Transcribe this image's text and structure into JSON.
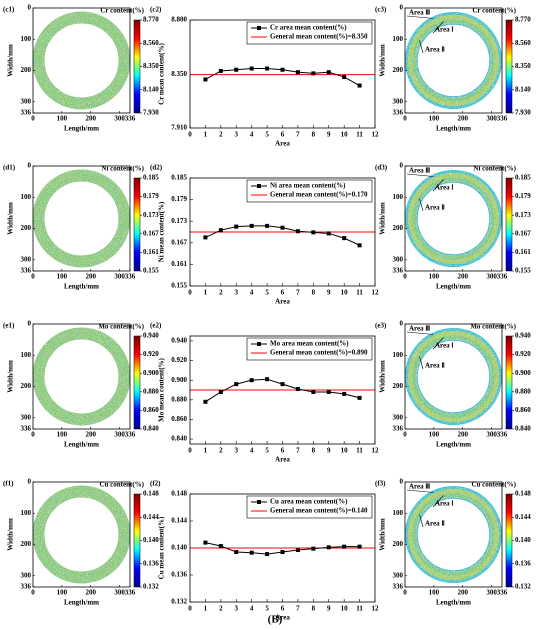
{
  "chart_data": [
    {
      "type": "heatmap",
      "label": "(c1)",
      "colorbar_title": "Cr content(%)",
      "clim": [
        7.93,
        8.77
      ],
      "colorbar_ticks": [
        {
          "value": 8.77,
          "label": "8.770"
        },
        {
          "value": 8.56,
          "label": "8.560"
        },
        {
          "value": 8.35,
          "label": "8.350"
        },
        {
          "value": 8.14,
          "label": "8.140"
        },
        {
          "value": 7.93,
          "label": "7.930"
        }
      ],
      "xlim": [
        0,
        336
      ],
      "ylim": [
        0,
        336
      ],
      "xticks": [
        0,
        100,
        200,
        300,
        336
      ],
      "yticks": [
        0,
        100,
        200,
        300,
        336
      ],
      "xlabel": "Length/mm",
      "ylabel": "Width/mm",
      "colormap": [
        "#00008f",
        "#0000ff",
        "#00ffff",
        "#ffff00",
        "#ff0000",
        "#800000"
      ]
    },
    {
      "type": "line",
      "label": "(c2)",
      "x": [
        1,
        2,
        3,
        4,
        5,
        6,
        7,
        8,
        9,
        10,
        11
      ],
      "series": [
        {
          "name": "Cr area mean content(%)",
          "color": "#000000",
          "values": [
            8.31,
            8.38,
            8.39,
            8.4,
            8.4,
            8.39,
            8.37,
            8.36,
            8.37,
            8.33,
            8.26
          ]
        }
      ],
      "reference_line": {
        "name": "General mean content(%)=8.350",
        "value": 8.35,
        "color": "#ff0000"
      },
      "xlim": [
        0,
        12
      ],
      "xticks": [
        0,
        1,
        2,
        3,
        4,
        5,
        6,
        7,
        8,
        9,
        10,
        11,
        12
      ],
      "ylim": [
        7.91,
        8.8
      ],
      "yticks": [
        {
          "value": 7.91,
          "label": "7.910"
        },
        {
          "value": 8.35,
          "label": "8.350"
        },
        {
          "value": 8.8,
          "label": "8.800"
        }
      ],
      "xlabel": "Area",
      "ylabel": "Cr mean content(%)"
    },
    {
      "type": "heatmap",
      "label": "(c3)",
      "colorbar_title": "Cr content(%)",
      "clim": [
        7.93,
        8.77
      ],
      "colorbar_ticks": [
        {
          "value": 8.77,
          "label": "8.770"
        },
        {
          "value": 8.56,
          "label": "8.560"
        },
        {
          "value": 8.35,
          "label": "8.350"
        },
        {
          "value": 8.14,
          "label": "8.140"
        },
        {
          "value": 7.93,
          "label": "7.930"
        }
      ],
      "xlim": [
        0,
        336
      ],
      "ylim": [
        0,
        336
      ],
      "xticks": [
        0,
        100,
        200,
        300,
        336
      ],
      "yticks": [
        0,
        100,
        200,
        300,
        336
      ],
      "xlabel": "Length/mm",
      "ylabel": "Width/mm",
      "colormap": [
        "#00008f",
        "#0000ff",
        "#00ffff",
        "#ffff00",
        "#ff0000",
        "#800000"
      ],
      "annotations": [
        "Area Ⅲ",
        "Area Ⅰ",
        "Area Ⅱ"
      ]
    },
    {
      "type": "heatmap",
      "label": "(d1)",
      "colorbar_title": "Ni content(%)",
      "clim": [
        0.155,
        0.185
      ],
      "colorbar_ticks": [
        0.185,
        0.179,
        0.173,
        0.167,
        0.161,
        0.155
      ],
      "xlim": [
        0,
        336
      ],
      "ylim": [
        0,
        336
      ],
      "xticks": [
        0,
        100,
        200,
        300,
        336
      ],
      "yticks": [
        0,
        100,
        200,
        300,
        336
      ],
      "xlabel": "Length/mm",
      "ylabel": "Width/mm",
      "colormap": [
        "#00008f",
        "#0000ff",
        "#00ffff",
        "#ffff00",
        "#ff0000",
        "#800000"
      ]
    },
    {
      "type": "line",
      "label": "(d2)",
      "x": [
        1,
        2,
        3,
        4,
        5,
        6,
        7,
        8,
        9,
        10,
        11
      ],
      "series": [
        {
          "name": "Ni area mean content(%)",
          "color": "#000000",
          "values": [
            0.1685,
            0.1705,
            0.1715,
            0.1717,
            0.1717,
            0.1712,
            0.1702,
            0.1699,
            0.1696,
            0.1683,
            0.1663
          ]
        }
      ],
      "reference_line": {
        "name": "General mean content(%)=0.170",
        "value": 0.17,
        "color": "#ff0000"
      },
      "xlim": [
        0,
        12
      ],
      "xticks": [
        0,
        1,
        2,
        3,
        4,
        5,
        6,
        7,
        8,
        9,
        10,
        11,
        12
      ],
      "ylim": [
        0.155,
        0.185
      ],
      "yticks": [
        0.155,
        0.161,
        0.167,
        0.173,
        0.179,
        0.185
      ],
      "xlabel": "Area",
      "ylabel": "Ni mean content(%)"
    },
    {
      "type": "heatmap",
      "label": "(d3)",
      "colorbar_title": "Ni content(%)",
      "clim": [
        0.155,
        0.185
      ],
      "colorbar_ticks": [
        0.185,
        0.179,
        0.173,
        0.167,
        0.161,
        0.155
      ],
      "xlim": [
        0,
        336
      ],
      "ylim": [
        0,
        336
      ],
      "xticks": [
        0,
        100,
        200,
        300,
        336
      ],
      "yticks": [
        0,
        100,
        200,
        300,
        336
      ],
      "xlabel": "Length/mm",
      "ylabel": "Width/mm",
      "colormap": [
        "#00008f",
        "#0000ff",
        "#00ffff",
        "#ffff00",
        "#ff0000",
        "#800000"
      ],
      "annotations": [
        "Area Ⅲ",
        "Area Ⅰ",
        "Area Ⅱ"
      ]
    },
    {
      "type": "heatmap",
      "label": "(e1)",
      "colorbar_title": "Mo content(%)",
      "clim": [
        0.84,
        0.94
      ],
      "colorbar_ticks": [
        {
          "value": 0.94,
          "label": "0.940"
        },
        {
          "value": 0.92,
          "label": "0.920"
        },
        {
          "value": 0.9,
          "label": "0.900"
        },
        {
          "value": 0.88,
          "label": "0.880"
        },
        {
          "value": 0.86,
          "label": "0.860"
        },
        {
          "value": 0.84,
          "label": "0.840"
        }
      ],
      "xlim": [
        0,
        336
      ],
      "ylim": [
        0,
        336
      ],
      "xticks": [
        0,
        100,
        200,
        300,
        336
      ],
      "yticks": [
        0,
        100,
        200,
        300,
        336
      ],
      "xlabel": "Length/mm",
      "ylabel": "Width/mm",
      "colormap": [
        "#00008f",
        "#0000ff",
        "#00ffff",
        "#ffff00",
        "#ff0000",
        "#800000"
      ]
    },
    {
      "type": "line",
      "label": "(e2)",
      "x": [
        1,
        2,
        3,
        4,
        5,
        6,
        7,
        8,
        9,
        10,
        11
      ],
      "series": [
        {
          "name": "Mo area mean content(%)",
          "color": "#000000",
          "values": [
            0.878,
            0.888,
            0.896,
            0.9,
            0.901,
            0.896,
            0.891,
            0.888,
            0.888,
            0.886,
            0.882
          ]
        }
      ],
      "reference_line": {
        "name": "General mean content(%)=0.890",
        "value": 0.89,
        "color": "#ff0000"
      },
      "xlim": [
        0,
        12
      ],
      "xticks": [
        0,
        1,
        2,
        3,
        4,
        5,
        6,
        7,
        8,
        9,
        10,
        11,
        12
      ],
      "ylim": [
        0.835,
        0.945
      ],
      "yticks": [
        {
          "value": 0.84,
          "label": "0.840"
        },
        {
          "value": 0.86,
          "label": "0.860"
        },
        {
          "value": 0.88,
          "label": "0.880"
        },
        {
          "value": 0.9,
          "label": "0.900"
        },
        {
          "value": 0.92,
          "label": "0.920"
        },
        {
          "value": 0.94,
          "label": "0.940"
        }
      ],
      "xlabel": "Area",
      "ylabel": "Mo mean content(%)"
    },
    {
      "type": "heatmap",
      "label": "(e3)",
      "colorbar_title": "Mo content(%)",
      "clim": [
        0.84,
        0.94
      ],
      "colorbar_ticks": [
        {
          "value": 0.94,
          "label": "0.940"
        },
        {
          "value": 0.92,
          "label": "0.920"
        },
        {
          "value": 0.9,
          "label": "0.900"
        },
        {
          "value": 0.88,
          "label": "0.880"
        },
        {
          "value": 0.86,
          "label": "0.860"
        },
        {
          "value": 0.84,
          "label": "0.840"
        }
      ],
      "xlim": [
        0,
        336
      ],
      "ylim": [
        0,
        336
      ],
      "xticks": [
        0,
        100,
        200,
        300,
        336
      ],
      "yticks": [
        0,
        100,
        200,
        300,
        336
      ],
      "xlabel": "Length/mm",
      "ylabel": "Width/mm",
      "colormap": [
        "#00008f",
        "#0000ff",
        "#00ffff",
        "#ffff00",
        "#ff0000",
        "#800000"
      ],
      "annotations": [
        "Area Ⅲ",
        "Area Ⅰ",
        "Area Ⅱ"
      ]
    },
    {
      "type": "heatmap",
      "label": "(f1)",
      "colorbar_title": "Cu content(%)",
      "clim": [
        0.132,
        0.148
      ],
      "colorbar_ticks": [
        0.148,
        0.144,
        {
          "value": 0.14,
          "label": "0.140"
        },
        0.136,
        0.132
      ],
      "xlim": [
        0,
        336
      ],
      "ylim": [
        0,
        336
      ],
      "xticks": [
        0,
        100,
        200,
        300,
        336
      ],
      "yticks": [
        0,
        100,
        200,
        300,
        336
      ],
      "xlabel": "Length/mm",
      "ylabel": "Width/mm",
      "colormap": [
        "#00008f",
        "#0000ff",
        "#00ffff",
        "#ffff00",
        "#ff0000",
        "#800000"
      ]
    },
    {
      "type": "line",
      "label": "(f2)",
      "x": [
        1,
        2,
        3,
        4,
        5,
        6,
        7,
        8,
        9,
        10,
        11
      ],
      "series": [
        {
          "name": "Cu area mean content(%)",
          "color": "#000000",
          "values": [
            0.1408,
            0.1403,
            0.1394,
            0.1393,
            0.1391,
            0.1394,
            0.1397,
            0.1399,
            0.1401,
            0.1402,
            0.1402
          ]
        }
      ],
      "reference_line": {
        "name": "General mean content(%)=0.140",
        "value": 0.14,
        "color": "#ff0000"
      },
      "xlim": [
        0,
        12
      ],
      "xticks": [
        0,
        1,
        2,
        3,
        4,
        5,
        6,
        7,
        8,
        9,
        10,
        11,
        12
      ],
      "ylim": [
        0.132,
        0.148
      ],
      "yticks": [
        0.132,
        0.136,
        {
          "value": 0.14,
          "label": "0.140"
        },
        0.144,
        0.148
      ],
      "xlabel": "Area",
      "ylabel": "Cu mean content(%)"
    },
    {
      "type": "heatmap",
      "label": "(f3)",
      "colorbar_title": "Cu content(%)",
      "clim": [
        0.132,
        0.148
      ],
      "colorbar_ticks": [
        0.148,
        0.144,
        {
          "value": 0.14,
          "label": "0.140"
        },
        0.136,
        0.132
      ],
      "xlim": [
        0,
        336
      ],
      "ylim": [
        0,
        336
      ],
      "xticks": [
        0,
        100,
        200,
        300,
        336
      ],
      "yticks": [
        0,
        100,
        200,
        300,
        336
      ],
      "xlabel": "Length/mm",
      "ylabel": "Width/mm",
      "colormap": [
        "#00008f",
        "#0000ff",
        "#00ffff",
        "#ffff00",
        "#ff0000",
        "#800000"
      ],
      "annotations": [
        "Area Ⅲ",
        "Area Ⅰ",
        "Area Ⅱ"
      ]
    }
  ],
  "caption": "(B)"
}
